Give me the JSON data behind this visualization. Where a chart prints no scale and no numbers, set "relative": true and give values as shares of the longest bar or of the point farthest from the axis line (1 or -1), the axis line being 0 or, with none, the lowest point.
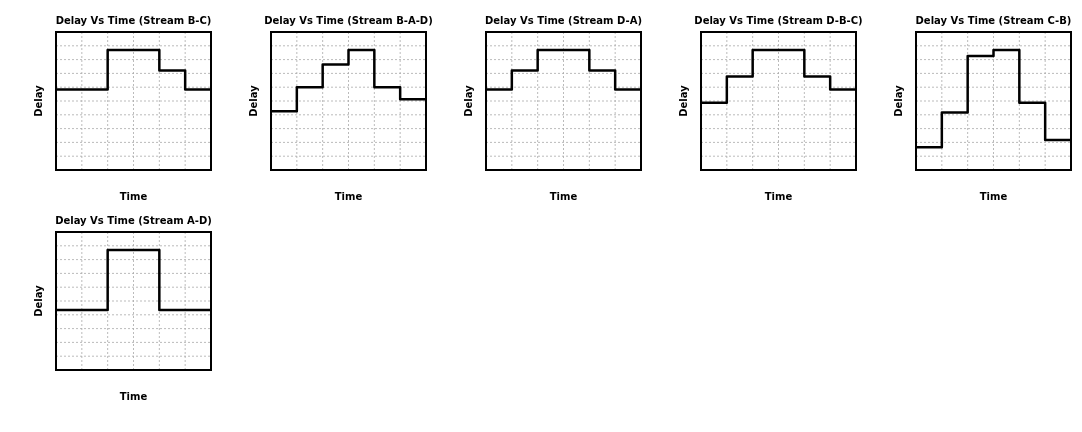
{
  "chart_data": [
    {
      "type": "step",
      "title": "Delay Vs Time (Stream B-C)",
      "xlabel": "Time",
      "ylabel": "Delay",
      "relative": true,
      "grid": true,
      "categories": [
        null,
        null,
        null,
        null,
        null,
        null,
        null
      ],
      "values": [
        0.67,
        0.67,
        1,
        1,
        0.83,
        0.67,
        0.67
      ],
      "color": "#000000"
    },
    {
      "type": "step",
      "title": "Delay Vs Time (Stream B-A-D)",
      "xlabel": "Time",
      "ylabel": "Delay",
      "relative": true,
      "grid": true,
      "categories": [
        null,
        null,
        null,
        null,
        null,
        null,
        null
      ],
      "values": [
        0.49,
        0.69,
        0.88,
        1,
        0.69,
        0.59,
        0.59
      ],
      "color": "#000000"
    },
    {
      "type": "step",
      "title": "Delay Vs Time (Stream D-A)",
      "xlabel": "Time",
      "ylabel": "Delay",
      "relative": true,
      "grid": true,
      "categories": [
        null,
        null,
        null,
        null,
        null,
        null,
        null
      ],
      "values": [
        0.67,
        0.83,
        1,
        1,
        0.83,
        0.67,
        0.67
      ],
      "color": "#000000"
    },
    {
      "type": "step",
      "title": "Delay Vs Time (Stream D-B-C)",
      "xlabel": "Time",
      "ylabel": "Delay",
      "relative": true,
      "grid": true,
      "categories": [
        null,
        null,
        null,
        null,
        null,
        null,
        null
      ],
      "values": [
        0.56,
        0.78,
        1,
        1,
        0.78,
        0.67,
        0.67
      ],
      "color": "#000000"
    },
    {
      "type": "step",
      "title": "Delay Vs Time (Stream C-B)",
      "xlabel": "Time",
      "ylabel": "Delay",
      "relative": true,
      "grid": true,
      "categories": [
        null,
        null,
        null,
        null,
        null,
        null,
        null
      ],
      "values": [
        0.19,
        0.48,
        0.95,
        1,
        0.56,
        0.25,
        0.25
      ],
      "color": "#000000"
    },
    {
      "type": "step",
      "title": "Delay Vs Time (Stream A-D)",
      "xlabel": "Time",
      "ylabel": "Delay",
      "relative": true,
      "grid": true,
      "categories": [
        null,
        null,
        null,
        null,
        null,
        null,
        null
      ],
      "values": [
        0.5,
        0.5,
        1,
        1,
        0.5,
        0.5,
        0.5
      ],
      "color": "#000000"
    }
  ]
}
